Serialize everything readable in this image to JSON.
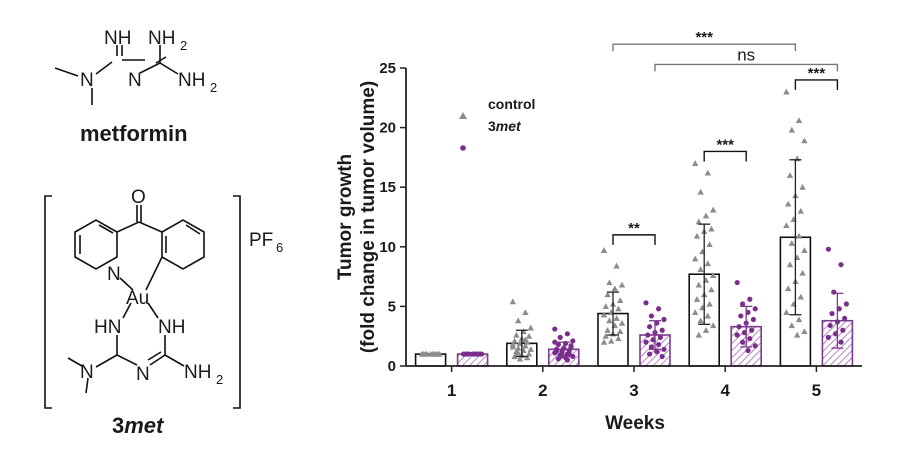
{
  "structures": {
    "metformin": {
      "name": "metformin",
      "atoms": {
        "nh": "NH",
        "nh2_top": "NH",
        "nh2_top_sub": "2",
        "n_left": "N",
        "n_mid": "N",
        "nh2_right": "NH",
        "nh2_right_sub": "2"
      }
    },
    "complex": {
      "name_prefix": "3",
      "name_italic": "met",
      "counterion": "PF",
      "counterion_sub": "6",
      "atoms": {
        "o": "O",
        "n_py": "N",
        "au": "Au",
        "hn": "HN",
        "nh": "NH",
        "n_amine": "N",
        "n_ring": "N",
        "nh2": "NH",
        "nh2_sub": "2"
      }
    }
  },
  "chart_data": {
    "type": "bar",
    "xlabel": "Weeks",
    "ylabel_line1": "Tumor growth",
    "ylabel_line2": "(fold change in tumor volume)",
    "ylim": [
      0,
      25
    ],
    "yticks": [
      "0",
      "5",
      "10",
      "15",
      "20",
      "25"
    ],
    "categories": [
      "1",
      "2",
      "3",
      "4",
      "5"
    ],
    "series": [
      {
        "name": "control",
        "values": [
          1.0,
          1.9,
          4.4,
          7.7,
          10.8
        ],
        "err": [
          0,
          1.1,
          1.8,
          4.2,
          6.5
        ],
        "color": "#111111",
        "marker": "triangle",
        "marker_color": "#8c8c8c",
        "hatched": false
      },
      {
        "name": "3met",
        "values": [
          1.0,
          1.4,
          2.6,
          3.3,
          3.8
        ],
        "err": [
          0,
          0.6,
          1.2,
          1.7,
          2.3
        ],
        "color": "#7b3b8c",
        "marker": "circle",
        "marker_color": "#7b2d8e",
        "hatched": true
      }
    ],
    "legend": {
      "position": "top-left",
      "entries": [
        {
          "prefix": "control",
          "italic": ""
        },
        {
          "prefix": "3",
          "italic": "met"
        }
      ]
    },
    "points": [
      {
        "week": 1,
        "series": 0,
        "ys": [
          1,
          1,
          1,
          1,
          1,
          1,
          1,
          1,
          1,
          1
        ]
      },
      {
        "week": 1,
        "series": 1,
        "ys": [
          1,
          1,
          1,
          1,
          1,
          1,
          1,
          1,
          1,
          1
        ]
      },
      {
        "week": 2,
        "series": 0,
        "ys": [
          5.4,
          4.5,
          3.8,
          3.2,
          2.9,
          2.6,
          2.5,
          2.3,
          2.1,
          2.0,
          1.9,
          1.8,
          1.7,
          1.5,
          1.4,
          1.3,
          1.2,
          1.0,
          0.9,
          0.8,
          0.7,
          0.6,
          1.6,
          2.2,
          1.1
        ]
      },
      {
        "week": 2,
        "series": 1,
        "ys": [
          3.1,
          2.7,
          2.4,
          2.1,
          1.9,
          1.8,
          1.6,
          1.5,
          1.4,
          1.3,
          1.2,
          1.1,
          1.0,
          0.9,
          0.8,
          0.7,
          0.6,
          1.7,
          1.45,
          1.25,
          1.05,
          0.85,
          2.0,
          0.5
        ]
      },
      {
        "week": 3,
        "series": 0,
        "ys": [
          9.7,
          8.4,
          7.0,
          6.8,
          6.5,
          6.0,
          5.5,
          5.2,
          5.0,
          4.8,
          4.5,
          4.3,
          4.0,
          3.8,
          3.6,
          3.4,
          3.0,
          2.9,
          2.7,
          2.5,
          2.3,
          2.1,
          2.0
        ]
      },
      {
        "week": 3,
        "series": 1,
        "ys": [
          5.3,
          4.8,
          4.2,
          3.9,
          3.6,
          3.3,
          3.0,
          2.8,
          2.6,
          2.4,
          2.2,
          2.0,
          1.8,
          1.6,
          1.4,
          1.2,
          1.0,
          0.8
        ]
      },
      {
        "week": 4,
        "series": 0,
        "ys": [
          17.0,
          16.2,
          14.6,
          13.1,
          12.6,
          12.1,
          11.5,
          11.3,
          10.9,
          10.2,
          9.6,
          9.0,
          8.6,
          8.1,
          7.6,
          7.2,
          6.8,
          6.4,
          6.0,
          5.6,
          5.2,
          4.9,
          4.5,
          4.2,
          3.8,
          3.4,
          3.0,
          2.6
        ]
      },
      {
        "week": 4,
        "series": 1,
        "ys": [
          7.0,
          5.6,
          5.2,
          4.8,
          4.5,
          4.2,
          3.9,
          3.6,
          3.3,
          3.0,
          2.8,
          2.6,
          2.3,
          2.0,
          1.7,
          1.3
        ]
      },
      {
        "week": 5,
        "series": 0,
        "ys": [
          23.0,
          20.6,
          19.8,
          18.9,
          17.4,
          16.0,
          15.0,
          14.3,
          13.6,
          13.0,
          12.3,
          11.8,
          10.9,
          10.3,
          9.7,
          9.1,
          8.5,
          7.8,
          7.1,
          6.5,
          5.8,
          5.2,
          4.5,
          3.9,
          3.4,
          2.9,
          2.6
        ]
      },
      {
        "week": 5,
        "series": 1,
        "ys": [
          9.8,
          8.5,
          6.2,
          5.2,
          4.8,
          4.4,
          4.0,
          3.7,
          3.4,
          3.0,
          2.7,
          2.4,
          2.0
        ]
      }
    ],
    "annotations": [
      {
        "label": "**",
        "from_week": 3,
        "from_series": 0,
        "to_week": 3,
        "to_series": 1,
        "level": 11.0,
        "type": "pair"
      },
      {
        "label": "***",
        "from_week": 4,
        "from_series": 0,
        "to_week": 4,
        "to_series": 1,
        "level": 18.0,
        "type": "pair"
      },
      {
        "label": "***",
        "from_week": 5,
        "from_series": 0,
        "to_week": 5,
        "to_series": 1,
        "level": 24.0,
        "type": "pair"
      },
      {
        "label": "***",
        "from_week": 3,
        "from_series": 0,
        "to_week": 5,
        "to_series": 0,
        "level": 27.0,
        "type": "long"
      },
      {
        "label": "ns",
        "from_week": 3,
        "from_series": 1,
        "to_week": 5,
        "to_series": 1,
        "level": 25.3,
        "type": "long"
      }
    ]
  }
}
